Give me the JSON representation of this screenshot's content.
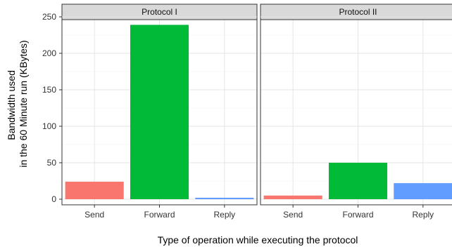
{
  "chart_data": {
    "type": "bar",
    "title": "",
    "xlabel": "Type of operation while executing the protocol",
    "ylabel_lines": [
      "Bandwidth used",
      "in the 60 Minute run (KBytes)"
    ],
    "categories": [
      "Send",
      "Forward",
      "Reply"
    ],
    "ylim": [
      0,
      260
    ],
    "yticks": [
      0,
      50,
      100,
      150,
      200,
      250
    ],
    "grid": true,
    "legend": "none",
    "colors": {
      "Send": "#F8766D",
      "Forward": "#00BA38",
      "Reply": "#619CFF"
    },
    "panels": [
      {
        "name": "Protocol I",
        "values": [
          24,
          239,
          2
        ]
      },
      {
        "name": "Protocol II",
        "values": [
          5,
          50,
          22
        ]
      }
    ]
  }
}
